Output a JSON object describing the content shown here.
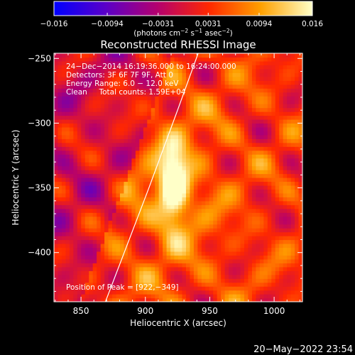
{
  "chart_data": {
    "type": "heatmap",
    "title": "Reconstructed RHESSI Image",
    "xlabel": "Heliocentric X (arcsec)",
    "ylabel": "Heliocentric Y (arcsec)",
    "xlim": [
      829,
      1022
    ],
    "ylim": [
      -438,
      -246
    ],
    "x_ticks": [
      850,
      900,
      950,
      1000
    ],
    "y_ticks": [
      -400,
      -350,
      -300,
      -250
    ],
    "x_tick_labels": [
      "850",
      "900",
      "950",
      "1000"
    ],
    "y_tick_labels": [
      "−400",
      "−350",
      "−300",
      "−250"
    ],
    "colorbar": {
      "min": -0.016,
      "max": 0.016,
      "tick_values": [
        -0.016,
        -0.0094,
        -0.0031,
        0.0031,
        0.0094,
        0.016
      ],
      "tick_labels": [
        "−0.016",
        "−0.0094",
        "−0.0031",
        "0.0031",
        "0.0094",
        "0.016"
      ],
      "label_pre": "(photons cm",
      "label_sup1": "−2",
      "label_mid1": " s",
      "label_sup2": "−1",
      "label_mid2": " asec",
      "label_sup3": "−2",
      "label_post": ")",
      "colors": [
        "#0000ff",
        "#5a00c8",
        "#b4006e",
        "#ff2800",
        "#ffa000",
        "#ffffc8"
      ]
    },
    "peak": {
      "x": 922,
      "y": -349,
      "value": 0.016
    },
    "limb_points": [
      [
        869,
        -438
      ],
      [
        902,
        -352
      ],
      [
        925,
        -290
      ],
      [
        941,
        -246
      ]
    ],
    "annotations": [
      "24−Dec−2014 16:19:36.000 to 16:24:00.000",
      "Detectors: 3F 6F 7F 9F, Att 0",
      "Energy Range: 6.0 − 12.0 keV",
      "Clean     Total counts: 1.59E+04"
    ],
    "peak_label": "Position of Peak = [922,−349]"
  },
  "footer_timestamp": "20−May−2022 23:54"
}
